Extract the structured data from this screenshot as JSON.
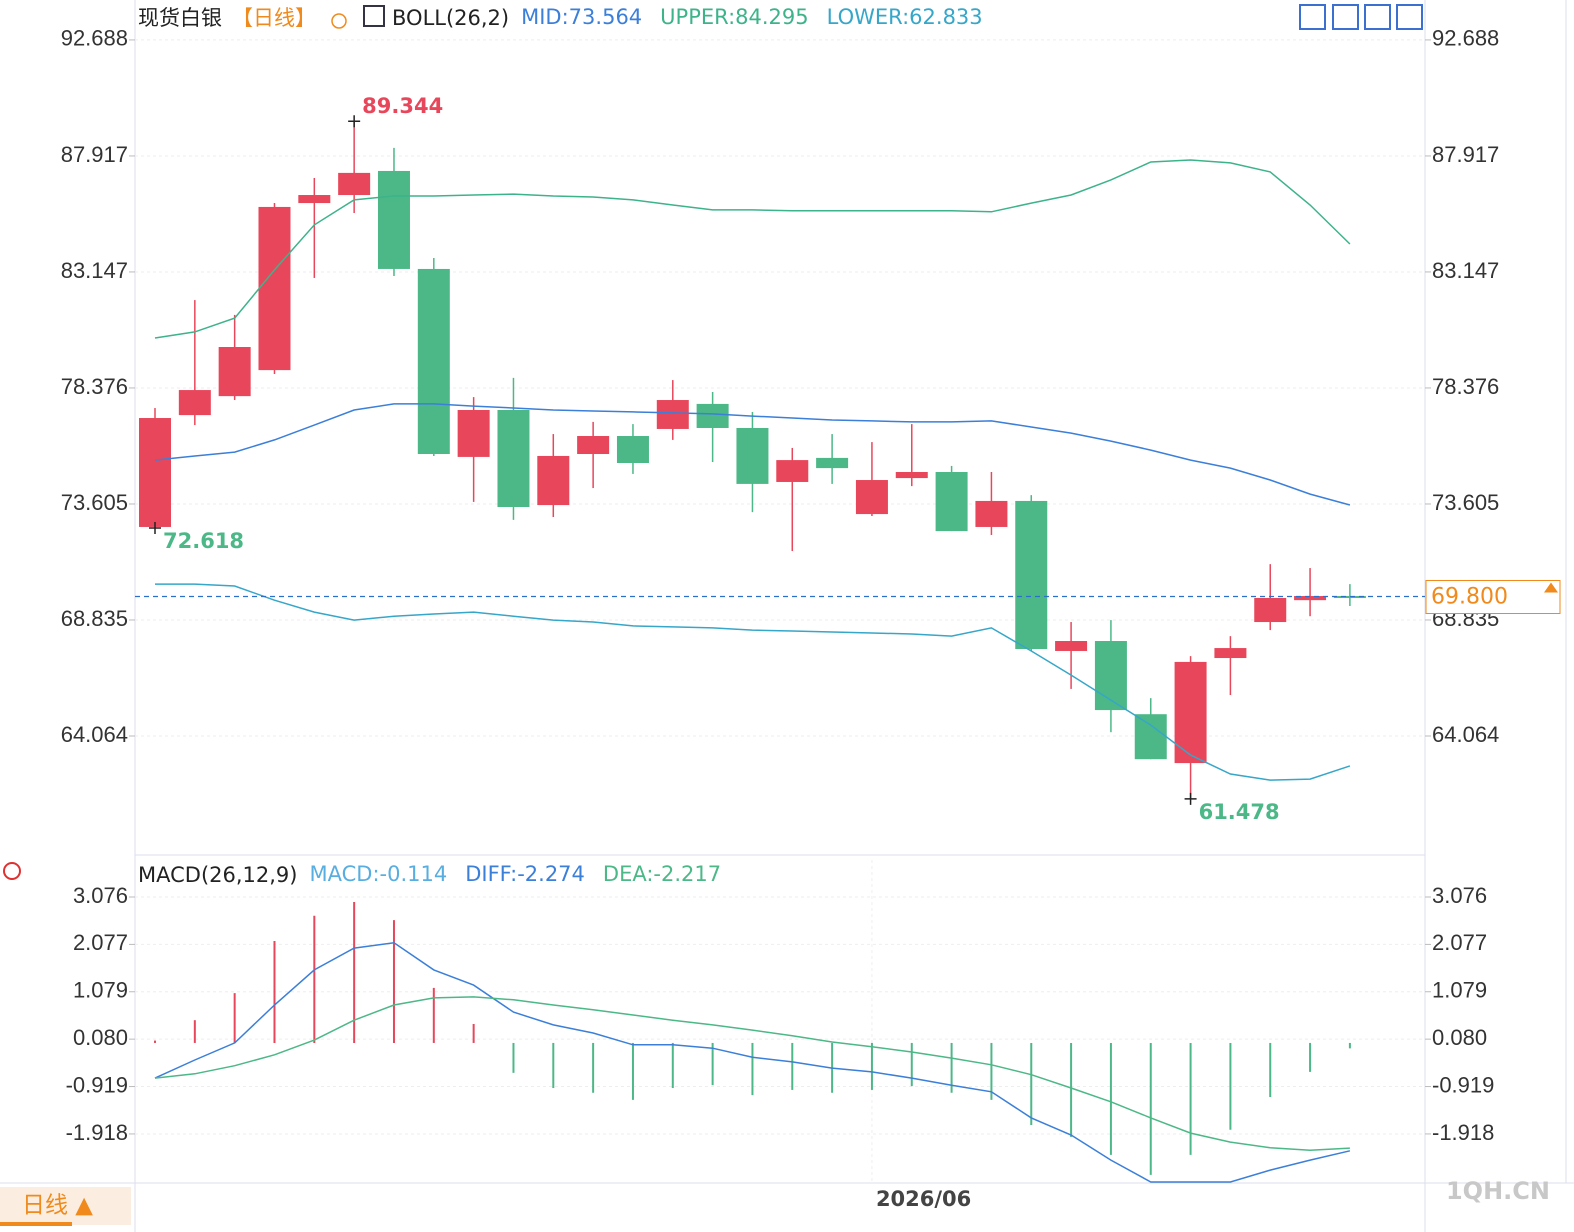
{
  "chart_data": [
    {
      "type": "candlestick",
      "title": "现货白银",
      "period": "【日线】",
      "indicator": "BOLL(26,2)",
      "categories": [
        null,
        null,
        null,
        null,
        null,
        null,
        null,
        null,
        null,
        null,
        null,
        null,
        null,
        null,
        null,
        null,
        null,
        null,
        "2026/06",
        null,
        null,
        null,
        null,
        null,
        null,
        null,
        null,
        null,
        null,
        null,
        null
      ],
      "open": [
        72.66,
        77.26,
        78.04,
        79.11,
        85.98,
        86.31,
        87.3,
        83.27,
        75.54,
        77.47,
        73.56,
        75.66,
        76.4,
        76.69,
        77.72,
        76.73,
        74.51,
        75.5,
        73.19,
        74.67,
        74.92,
        72.66,
        73.73,
        67.56,
        67.97,
        64.96,
        62.95,
        67.27,
        68.75,
        69.65,
        69.82
      ],
      "close": [
        77.14,
        78.29,
        80.06,
        85.82,
        86.31,
        87.22,
        83.27,
        75.66,
        77.47,
        73.48,
        75.58,
        76.4,
        75.29,
        77.88,
        76.73,
        74.43,
        75.41,
        75.08,
        74.59,
        74.92,
        72.49,
        73.73,
        67.64,
        67.97,
        65.13,
        63.11,
        67.11,
        67.68,
        69.74,
        69.82,
        69.8
      ],
      "high": [
        77.55,
        81.99,
        81.38,
        85.98,
        87.01,
        89.344,
        88.25,
        83.72,
        78.0,
        78.79,
        76.48,
        76.98,
        76.89,
        78.7,
        78.21,
        77.39,
        75.91,
        76.48,
        76.15,
        76.89,
        75.17,
        74.92,
        73.97,
        68.75,
        68.83,
        65.62,
        67.35,
        68.17,
        71.13,
        70.97,
        70.31
      ],
      "low": [
        72.618,
        76.85,
        77.88,
        78.95,
        82.9,
        85.57,
        82.98,
        75.58,
        73.69,
        72.95,
        73.07,
        74.26,
        74.84,
        76.24,
        75.33,
        73.27,
        71.67,
        74.43,
        73.11,
        74.34,
        72.49,
        72.33,
        67.56,
        66.0,
        64.22,
        63.11,
        61.478,
        65.75,
        68.42,
        68.99,
        69.41
      ],
      "up_color": "#e8475b",
      "down_color": "#4cb887",
      "series": [
        {
          "name": "MID:73.564",
          "color": "#3b7fd9",
          "values": [
            75.41,
            75.58,
            75.74,
            76.24,
            76.85,
            77.47,
            77.72,
            77.72,
            77.63,
            77.55,
            77.47,
            77.43,
            77.39,
            77.35,
            77.31,
            77.22,
            77.14,
            77.06,
            77.02,
            76.98,
            76.98,
            77.02,
            76.77,
            76.52,
            76.19,
            75.82,
            75.41,
            75.08,
            74.59,
            74.01,
            73.564
          ]
        },
        {
          "name": "UPPER:84.295",
          "color": "#3db38a",
          "values": [
            80.43,
            80.68,
            81.25,
            83.23,
            85.08,
            86.11,
            86.27,
            86.27,
            86.31,
            86.35,
            86.27,
            86.23,
            86.11,
            85.9,
            85.7,
            85.7,
            85.66,
            85.66,
            85.66,
            85.66,
            85.66,
            85.62,
            85.98,
            86.31,
            86.93,
            87.67,
            87.75,
            87.63,
            87.26,
            85.9,
            84.295
          ]
        },
        {
          "name": "LOWER:62.833",
          "color": "#36a6c9",
          "values": [
            70.31,
            70.31,
            70.23,
            69.65,
            69.16,
            68.83,
            68.99,
            69.08,
            69.16,
            68.99,
            68.83,
            68.75,
            68.59,
            68.55,
            68.51,
            68.42,
            68.38,
            68.34,
            68.3,
            68.26,
            68.17,
            68.51,
            67.56,
            66.57,
            65.54,
            64.51,
            63.28,
            62.5,
            62.25,
            62.29,
            62.833
          ]
        }
      ],
      "last_price": {
        "value": 69.8,
        "label": "69.800"
      },
      "ylim": [
        59.17,
        94.33
      ],
      "yticks": [
        92.688,
        87.917,
        83.147,
        78.376,
        73.605,
        68.835,
        64.064
      ],
      "grid": true
    },
    {
      "type": "macd",
      "title": "MACD(26,12,9)",
      "series": [
        {
          "name": "MACD:-0.114",
          "color": "#58aee0",
          "values": [
            0.05,
            0.48,
            1.05,
            2.15,
            2.68,
            2.97,
            2.59,
            1.16,
            0.4,
            -0.63,
            -0.95,
            -1.05,
            -1.2,
            -0.95,
            -0.89,
            -1.1,
            -0.99,
            -1.05,
            -0.99,
            -0.91,
            -1.05,
            -1.2,
            -1.73,
            -1.98,
            -2.36,
            -2.78,
            -2.36,
            -1.83,
            -1.14,
            -0.61,
            -0.114
          ]
        },
        {
          "name": "DIFF:-2.274",
          "color": "#3b7fd9",
          "values": [
            -0.74,
            -0.36,
            0.0,
            0.8,
            1.54,
            2.0,
            2.11,
            1.54,
            1.22,
            0.65,
            0.38,
            0.21,
            -0.04,
            -0.04,
            -0.11,
            -0.3,
            -0.4,
            -0.53,
            -0.61,
            -0.74,
            -0.89,
            -1.03,
            -1.58,
            -1.94,
            -2.47,
            -2.93,
            -2.93,
            -2.93,
            -2.68,
            -2.47,
            -2.274
          ]
        },
        {
          "name": "DEA:-2.217",
          "color": "#4cb887",
          "values": [
            -0.74,
            -0.65,
            -0.48,
            -0.25,
            0.06,
            0.48,
            0.8,
            0.95,
            0.97,
            0.91,
            0.8,
            0.7,
            0.59,
            0.48,
            0.38,
            0.27,
            0.15,
            0.02,
            -0.08,
            -0.19,
            -0.32,
            -0.46,
            -0.67,
            -0.95,
            -1.24,
            -1.58,
            -1.9,
            -2.09,
            -2.21,
            -2.26,
            -2.217
          ]
        }
      ],
      "up_color": "#e8475b",
      "down_color": "#4cb887",
      "ylim": [
        -2.952,
        3.856
      ],
      "yticks": [
        3.076,
        2.077,
        1.079,
        {
          "value": 0.08,
          "label": "0.080"
        },
        -0.919,
        -1.918
      ],
      "grid": true
    }
  ],
  "period_button": "日线 ▲",
  "watermark": "1QH.CN"
}
